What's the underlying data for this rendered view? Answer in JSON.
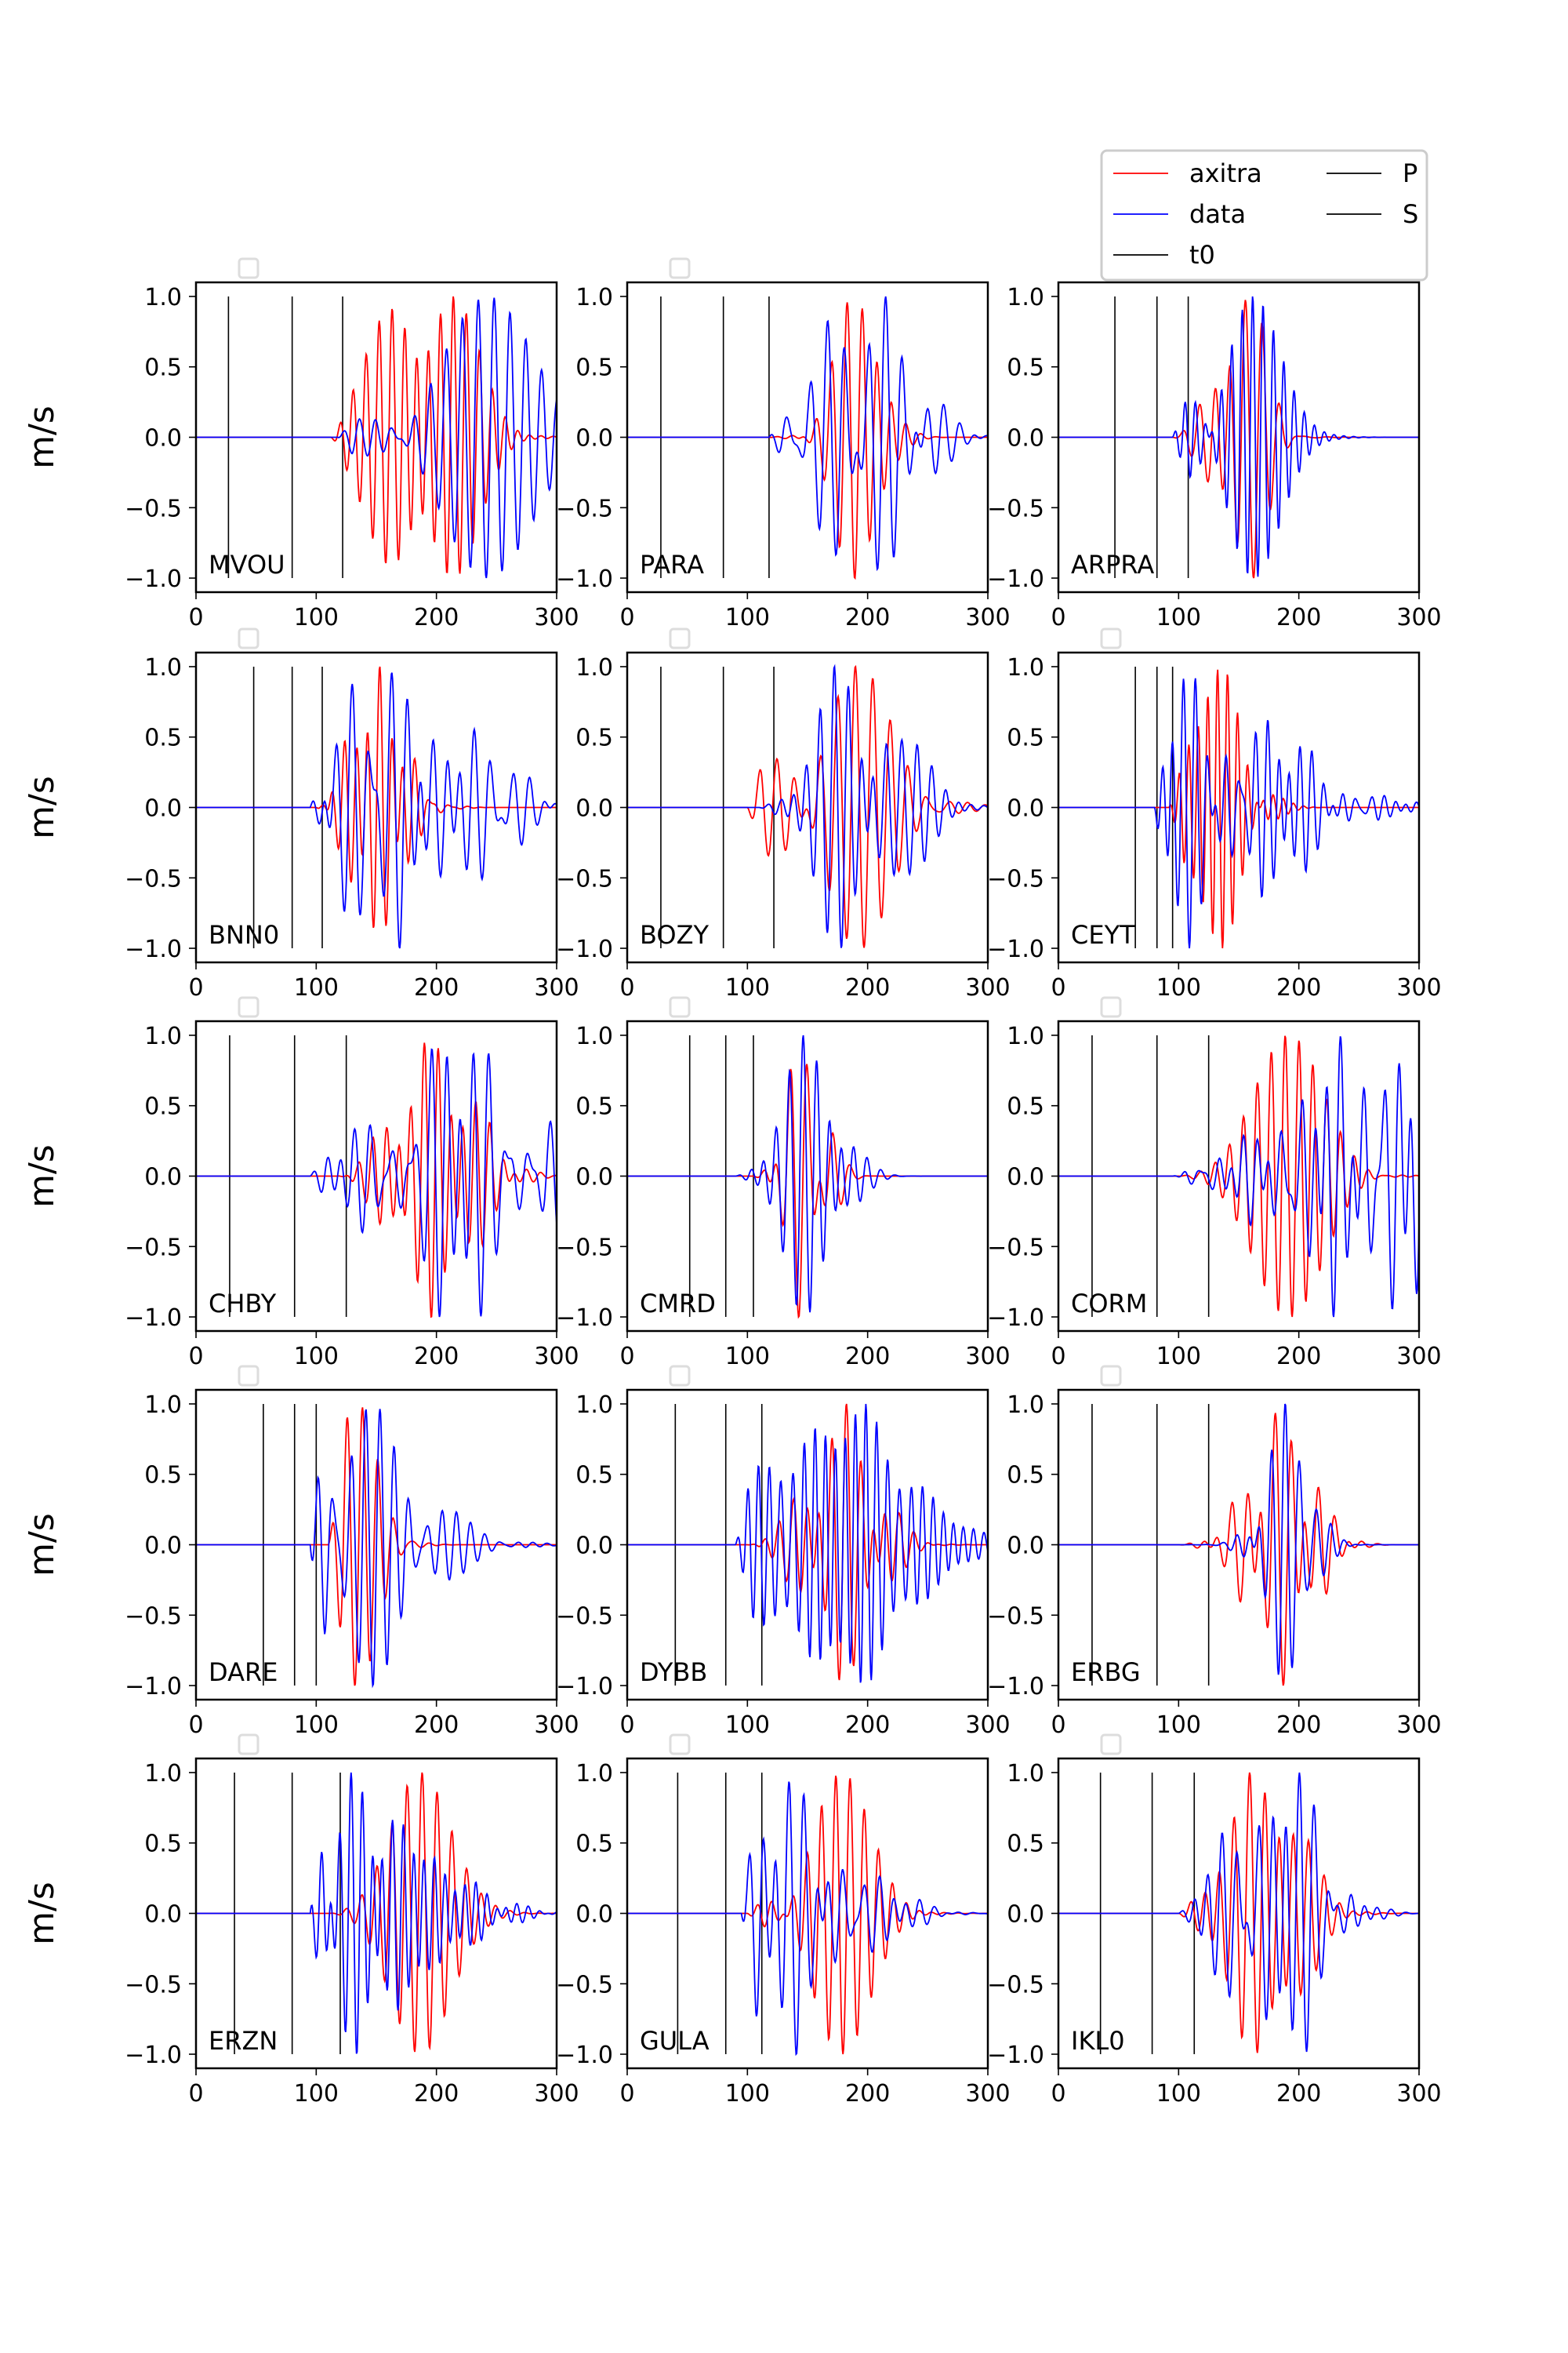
{
  "figure": {
    "ylabel": "m/s",
    "legend": {
      "placement": "top-right",
      "entries": [
        {
          "label": "axitra",
          "color": "#ff0000"
        },
        {
          "label": "data",
          "color": "#0000ff"
        },
        {
          "label": "t0",
          "color": "#000000"
        },
        {
          "label": "P",
          "color": "#000000"
        },
        {
          "label": "S",
          "color": "#000000"
        }
      ]
    }
  },
  "chart_data": {
    "type": "line",
    "layout": "5x3 grid of seismogram panels",
    "xlim": [
      0,
      300
    ],
    "ylim": [
      -1.1,
      1.1
    ],
    "xticks": [
      0,
      100,
      200,
      300
    ],
    "yticks": [
      -1.0,
      -0.5,
      0.0,
      0.5,
      1.0
    ],
    "ytick_labels": [
      "−1.0",
      "−0.5",
      "0.0",
      "0.5",
      "1.0"
    ],
    "ylabel": "m/s",
    "series_styles": [
      {
        "name": "axitra",
        "color": "#ff0000"
      },
      {
        "name": "data",
        "color": "#0000ff"
      }
    ],
    "panels": [
      {
        "station": "MVOU",
        "t0": 27,
        "P": 80,
        "S": 122,
        "axitra": {
          "onset": 112,
          "peak": 190,
          "period": 14,
          "spread": 34,
          "phase": 0.0
        },
        "data": {
          "onset": 118,
          "peak": 235,
          "period": 16,
          "spread": 55,
          "phase": 1.1
        }
      },
      {
        "station": "PARA",
        "t0": 28,
        "P": 80,
        "S": 118,
        "axitra": {
          "onset": 112,
          "peak": 190,
          "period": 16,
          "spread": 20,
          "phase": 0.4
        },
        "data": {
          "onset": 118,
          "peak": 200,
          "period": 14,
          "spread": 38,
          "phase": 1.7
        }
      },
      {
        "station": "ARPRA",
        "t0": 47,
        "P": 82,
        "S": 108,
        "axitra": {
          "onset": 95,
          "peak": 155,
          "period": 16,
          "spread": 22,
          "phase": 0.9
        },
        "data": {
          "onset": 95,
          "peak": 145,
          "period": 10,
          "spread": 32,
          "phase": 2.3
        }
      },
      {
        "station": "BNN0",
        "t0": 48,
        "P": 80,
        "S": 105,
        "axitra": {
          "onset": 100,
          "peak": 152,
          "period": 12,
          "spread": 25,
          "phase": 0.2
        },
        "data": {
          "onset": 95,
          "peak": 170,
          "period": 13,
          "spread": 60,
          "phase": 1.4
        }
      },
      {
        "station": "BOZY",
        "t0": 28,
        "P": 80,
        "S": 122,
        "axitra": {
          "onset": 100,
          "peak": 180,
          "period": 18,
          "spread": 40,
          "phase": 0.6
        },
        "data": {
          "onset": 110,
          "peak": 200,
          "period": 13,
          "spread": 32,
          "phase": 2.0
        }
      },
      {
        "station": "CEYT",
        "t0": 64,
        "P": 82,
        "S": 95,
        "axitra": {
          "onset": 92,
          "peak": 135,
          "period": 10,
          "spread": 22,
          "phase": 0.1
        },
        "data": {
          "onset": 80,
          "peak": 110,
          "period": 11,
          "spread": 75,
          "phase": 2.6
        }
      },
      {
        "station": "CHBY",
        "t0": 28,
        "P": 82,
        "S": 125,
        "axitra": {
          "onset": 118,
          "peak": 200,
          "period": 13,
          "spread": 35,
          "phase": 0.3
        },
        "data": {
          "onset": 95,
          "peak": 220,
          "period": 14,
          "spread": 60,
          "phase": 1.9
        }
      },
      {
        "station": "CMRD",
        "t0": 52,
        "P": 82,
        "S": 105,
        "axitra": {
          "onset": 105,
          "peak": 150,
          "period": 14,
          "spread": 16,
          "phase": 0.5
        },
        "data": {
          "onset": 90,
          "peak": 155,
          "period": 12,
          "spread": 24,
          "phase": 1.2
        }
      },
      {
        "station": "CORM",
        "t0": 28,
        "P": 82,
        "S": 125,
        "axitra": {
          "onset": 100,
          "peak": 195,
          "period": 14,
          "spread": 35,
          "phase": 0.8
        },
        "data": {
          "onset": 95,
          "peak": 270,
          "period": 13,
          "spread": 70,
          "phase": 2.4
        }
      },
      {
        "station": "DARE",
        "t0": 56,
        "P": 82,
        "S": 100,
        "axitra": {
          "onset": 110,
          "peak": 138,
          "period": 14,
          "spread": 20,
          "phase": 0.0
        },
        "data": {
          "onset": 95,
          "peak": 105,
          "period": 12,
          "spread": 60,
          "phase": 1.6
        }
      },
      {
        "station": "DYBB",
        "t0": 40,
        "P": 82,
        "S": 112,
        "axitra": {
          "onset": 100,
          "peak": 180,
          "period": 13,
          "spread": 28,
          "phase": 0.7
        },
        "data": {
          "onset": 90,
          "peak": 175,
          "period": 11,
          "spread": 55,
          "phase": 2.1
        }
      },
      {
        "station": "ERBG",
        "t0": 28,
        "P": 82,
        "S": 125,
        "axitra": {
          "onset": 100,
          "peak": 185,
          "period": 14,
          "spread": 26,
          "phase": 0.2
        },
        "data": {
          "onset": 95,
          "peak": 190,
          "period": 11,
          "spread": 20,
          "phase": 1.0
        }
      },
      {
        "station": "ERZN",
        "t0": 32,
        "P": 80,
        "S": 120,
        "axitra": {
          "onset": 110,
          "peak": 188,
          "period": 15,
          "spread": 28,
          "phase": 0.4
        },
        "data": {
          "onset": 95,
          "peak": 140,
          "period": 12,
          "spread": 55,
          "phase": 1.8
        }
      },
      {
        "station": "GULA",
        "t0": 42,
        "P": 82,
        "S": 112,
        "axitra": {
          "onset": 100,
          "peak": 168,
          "period": 13,
          "spread": 32,
          "phase": 0.9
        },
        "data": {
          "onset": 95,
          "peak": 125,
          "period": 12,
          "spread": 55,
          "phase": 2.5
        }
      },
      {
        "station": "IKL0",
        "t0": 35,
        "P": 78,
        "S": 113,
        "axitra": {
          "onset": 100,
          "peak": 175,
          "period": 14,
          "spread": 30,
          "phase": 0.3
        },
        "data": {
          "onset": 100,
          "peak": 180,
          "period": 12,
          "spread": 35,
          "phase": 1.3
        }
      }
    ]
  }
}
